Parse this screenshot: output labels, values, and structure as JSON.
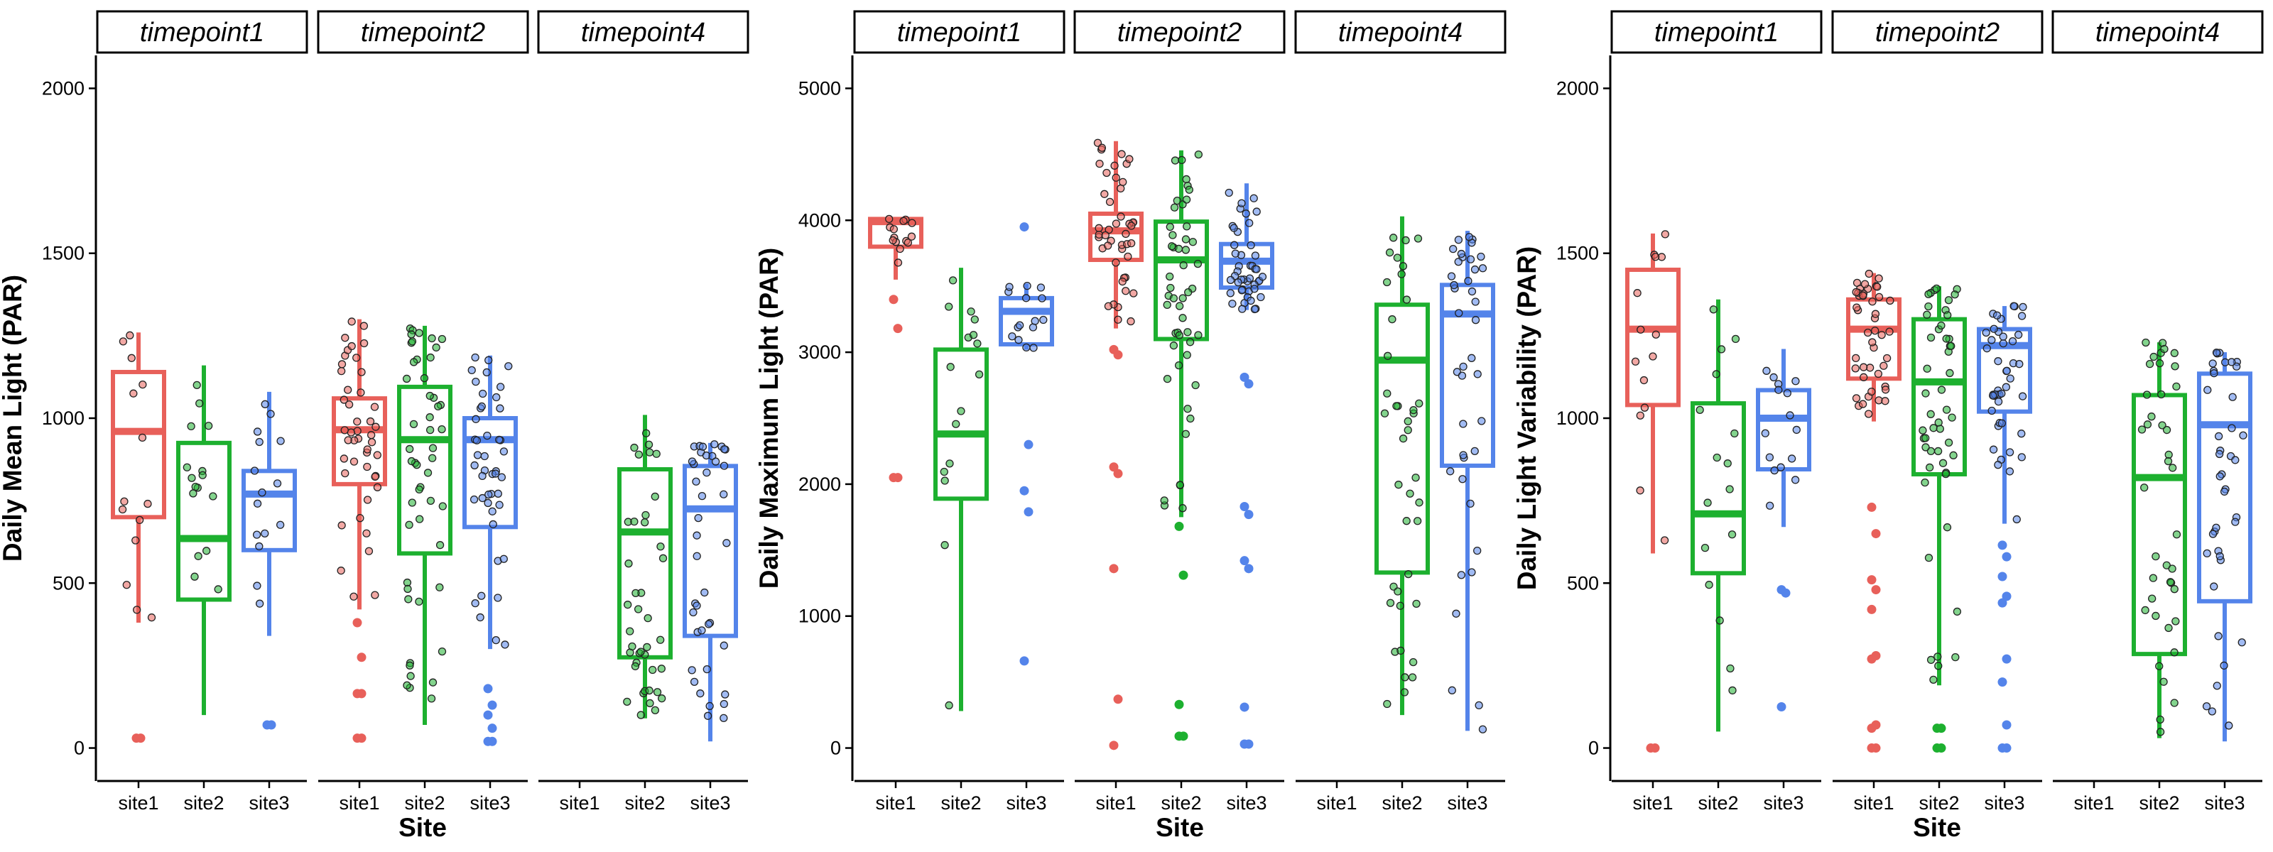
{
  "colors": {
    "site1": "#E8605A",
    "site2": "#1DB02F",
    "site3": "#5484EA"
  },
  "chart_data": [
    {
      "type": "boxplot",
      "ylabel": "Daily Mean Light (PAR)",
      "xlabel": "Site",
      "ylim": [
        -100,
        2100
      ],
      "yticks": [
        0,
        500,
        1000,
        1500,
        2000
      ],
      "ytick_labels": [
        "0",
        "500",
        "1000",
        "1500",
        "2000"
      ],
      "facets": [
        {
          "label": "timepoint1",
          "categories": [
            "site1",
            "site2",
            "site3"
          ],
          "boxes": [
            {
              "site": "site1",
              "lo": 380,
              "q1": 700,
              "median": 960,
              "q3": 1140,
              "hi": 1260,
              "n": 14,
              "outliers": [
                30,
                30
              ]
            },
            {
              "site": "site2",
              "lo": 100,
              "q1": 450,
              "median": 635,
              "q3": 925,
              "hi": 1160,
              "n": 16,
              "outliers": []
            },
            {
              "site": "site3",
              "lo": 340,
              "q1": 600,
              "median": 770,
              "q3": 840,
              "hi": 1080,
              "n": 15,
              "outliers": [
                70,
                70
              ]
            }
          ]
        },
        {
          "label": "timepoint2",
          "categories": [
            "site1",
            "site2",
            "site3"
          ],
          "boxes": [
            {
              "site": "site1",
              "lo": 420,
              "q1": 800,
              "median": 965,
              "q3": 1060,
              "hi": 1300,
              "n": 45,
              "outliers": [
                380,
                275,
                165,
                165,
                30,
                30
              ]
            },
            {
              "site": "site2",
              "lo": 70,
              "q1": 590,
              "median": 935,
              "q3": 1095,
              "hi": 1280,
              "n": 50,
              "outliers": []
            },
            {
              "site": "site3",
              "lo": 300,
              "q1": 670,
              "median": 935,
              "q3": 1000,
              "hi": 1190,
              "n": 45,
              "outliers": [
                180,
                130,
                100,
                60,
                20,
                20
              ]
            }
          ]
        },
        {
          "label": "timepoint4",
          "categories": [
            "site1",
            "site2",
            "site3"
          ],
          "boxes": [
            {
              "site": "site2",
              "lo": 90,
              "q1": 275,
              "median": 655,
              "q3": 845,
              "hi": 1010,
              "n": 40,
              "outliers": []
            },
            {
              "site": "site3",
              "lo": 20,
              "q1": 340,
              "median": 725,
              "q3": 855,
              "hi": 925,
              "n": 40,
              "outliers": []
            }
          ]
        }
      ]
    },
    {
      "type": "boxplot",
      "ylabel": "Daily Maximum Light (PAR)",
      "xlabel": "Site",
      "ylim": [
        -250,
        5250
      ],
      "yticks": [
        0,
        1000,
        2000,
        3000,
        4000,
        5000
      ],
      "ytick_labels": [
        "0",
        "1000",
        "2000",
        "3000",
        "4000",
        "5000"
      ],
      "facets": [
        {
          "label": "timepoint1",
          "categories": [
            "site1",
            "site2",
            "site3"
          ],
          "boxes": [
            {
              "site": "site1",
              "lo": 3550,
              "q1": 3800,
              "median": 3990,
              "q3": 4010,
              "hi": 4010,
              "n": 14,
              "outliers": [
                3400,
                3180,
                2050,
                2050
              ]
            },
            {
              "site": "site2",
              "lo": 280,
              "q1": 1890,
              "median": 2380,
              "q3": 3020,
              "hi": 3640,
              "n": 16,
              "outliers": []
            },
            {
              "site": "site3",
              "lo": 3020,
              "q1": 3060,
              "median": 3310,
              "q3": 3410,
              "hi": 3520,
              "n": 15,
              "outliers": [
                3950,
                2300,
                1950,
                1790,
                660
              ]
            }
          ]
        },
        {
          "label": "timepoint2",
          "categories": [
            "site1",
            "site2",
            "site3"
          ],
          "boxes": [
            {
              "site": "site1",
              "lo": 3180,
              "q1": 3700,
              "median": 3920,
              "q3": 4050,
              "hi": 4600,
              "n": 45,
              "outliers": [
                3020,
                2980,
                2130,
                2080,
                1360,
                370,
                20
              ]
            },
            {
              "site": "site2",
              "lo": 1750,
              "q1": 3100,
              "median": 3700,
              "q3": 3990,
              "hi": 4530,
              "n": 50,
              "outliers": [
                1680,
                1310,
                330,
                90,
                90
              ]
            },
            {
              "site": "site3",
              "lo": 3320,
              "q1": 3490,
              "median": 3690,
              "q3": 3820,
              "hi": 4280,
              "n": 45,
              "outliers": [
                2810,
                2760,
                1830,
                1770,
                1420,
                1360,
                310,
                30,
                30
              ]
            }
          ]
        },
        {
          "label": "timepoint4",
          "categories": [
            "site1",
            "site2",
            "site3"
          ],
          "boxes": [
            {
              "site": "site2",
              "lo": 250,
              "q1": 1330,
              "median": 2940,
              "q3": 3360,
              "hi": 4030,
              "n": 40,
              "outliers": []
            },
            {
              "site": "site3",
              "lo": 130,
              "q1": 2140,
              "median": 3290,
              "q3": 3510,
              "hi": 3920,
              "n": 40,
              "outliers": []
            }
          ]
        }
      ]
    },
    {
      "type": "boxplot",
      "ylabel": "Daily Light Variability (PAR)",
      "xlabel": "Site",
      "ylim": [
        -100,
        2100
      ],
      "yticks": [
        0,
        500,
        1000,
        1500,
        2000
      ],
      "ytick_labels": [
        "0",
        "500",
        "1000",
        "1500",
        "2000"
      ],
      "facets": [
        {
          "label": "timepoint1",
          "categories": [
            "site1",
            "site2",
            "site3"
          ],
          "boxes": [
            {
              "site": "site1",
              "lo": 590,
              "q1": 1040,
              "median": 1270,
              "q3": 1450,
              "hi": 1560,
              "n": 14,
              "outliers": [
                0,
                0
              ]
            },
            {
              "site": "site2",
              "lo": 50,
              "q1": 530,
              "median": 710,
              "q3": 1045,
              "hi": 1360,
              "n": 16,
              "outliers": []
            },
            {
              "site": "site3",
              "lo": 670,
              "q1": 845,
              "median": 1000,
              "q3": 1085,
              "hi": 1210,
              "n": 15,
              "outliers": [
                480,
                470,
                125
              ]
            }
          ]
        },
        {
          "label": "timepoint2",
          "categories": [
            "site1",
            "site2",
            "site3"
          ],
          "boxes": [
            {
              "site": "site1",
              "lo": 990,
              "q1": 1120,
              "median": 1270,
              "q3": 1360,
              "hi": 1440,
              "n": 45,
              "outliers": [
                730,
                650,
                510,
                480,
                420,
                280,
                270,
                70,
                60,
                0,
                0
              ]
            },
            {
              "site": "site2",
              "lo": 190,
              "q1": 830,
              "median": 1110,
              "q3": 1300,
              "hi": 1400,
              "n": 50,
              "outliers": [
                60,
                60,
                0,
                0
              ]
            },
            {
              "site": "site3",
              "lo": 680,
              "q1": 1020,
              "median": 1220,
              "q3": 1270,
              "hi": 1340,
              "n": 45,
              "outliers": [
                615,
                580,
                520,
                460,
                440,
                270,
                200,
                70,
                0,
                0
              ]
            }
          ]
        },
        {
          "label": "timepoint4",
          "categories": [
            "site1",
            "site2",
            "site3"
          ],
          "boxes": [
            {
              "site": "site2",
              "lo": 30,
              "q1": 285,
              "median": 820,
              "q3": 1070,
              "hi": 1230,
              "n": 40,
              "outliers": []
            },
            {
              "site": "site3",
              "lo": 20,
              "q1": 445,
              "median": 980,
              "q3": 1135,
              "hi": 1200,
              "n": 40,
              "outliers": []
            }
          ]
        }
      ]
    }
  ]
}
